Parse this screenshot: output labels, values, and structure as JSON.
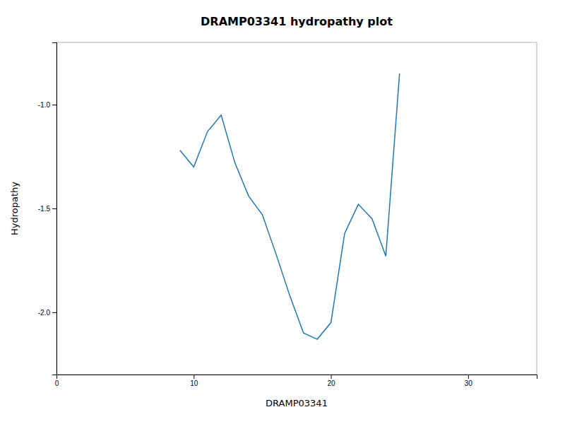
{
  "chart_data": {
    "type": "line",
    "title": "DRAMP03341 hydropathy plot",
    "xlabel": "DRAMP03341",
    "ylabel": "Hydropathy",
    "x": [
      9,
      10,
      11,
      12,
      13,
      14,
      15,
      16,
      17,
      18,
      19,
      20,
      21,
      22,
      23,
      24,
      25
    ],
    "values": [
      -1.22,
      -1.3,
      -1.13,
      -1.05,
      -1.28,
      -1.44,
      -1.53,
      -1.72,
      -1.92,
      -2.1,
      -2.13,
      -2.05,
      -1.62,
      -1.48,
      -1.55,
      -1.73,
      -0.85
    ],
    "xlim": [
      0,
      35
    ],
    "ylim": [
      -2.3,
      -0.7
    ],
    "xticks": [
      0,
      10,
      20,
      30
    ],
    "yticks": [
      {
        "value": -2.0,
        "label": "-2.0"
      },
      -1.5,
      {
        "value": -1.0,
        "label": "-1.0"
      }
    ]
  }
}
